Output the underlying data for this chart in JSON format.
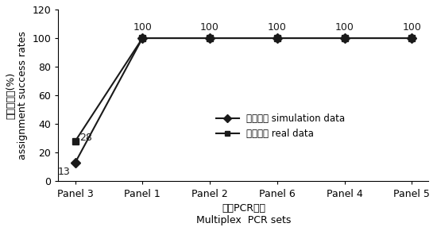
{
  "categories": [
    "Panel 3",
    "Panel 1",
    "Panel 2",
    "Panel 6",
    "Panel 4",
    "Panel 5"
  ],
  "simulation_data": [
    13,
    100,
    100,
    100,
    100,
    100
  ],
  "real_data": [
    28,
    100,
    100,
    100,
    100,
    100
  ],
  "simulation_label_cn": "模拟数据",
  "simulation_label_en": " simulation data",
  "real_label_cn": "实际数据",
  "real_label_en": " real data",
  "ylabel_cn": "鉴定成功率(%)",
  "ylabel_en": "assignment success rates",
  "xlabel_cn": "多重PCR组合",
  "xlabel_en": "Multiplex  PCR sets",
  "ylim": [
    0,
    120
  ],
  "yticks": [
    0,
    20,
    40,
    60,
    80,
    100,
    120
  ],
  "line_color": "#1a1a1a",
  "sim_marker": "D",
  "real_marker": "s",
  "marker_size": 6,
  "linewidth": 1.5,
  "background_color": "#ffffff",
  "font_size": 9,
  "label_fontsize": 9
}
